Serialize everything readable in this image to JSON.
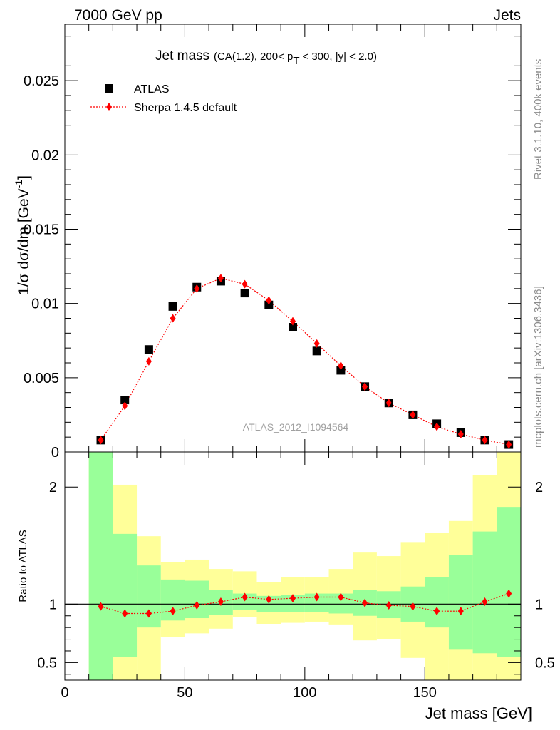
{
  "header": {
    "left": "7000 GeV pp",
    "right": "Jets"
  },
  "side_labels": {
    "rivet": "Rivet 3.1.10,  400k events",
    "mcplots": "mcplots.cern.ch [arXiv:1306.3436]"
  },
  "chart_data": {
    "type": "scatter",
    "title": "Jet mass",
    "subtitle_parts": {
      "pre": "(CA(1.2), 200< p",
      "sub": "T",
      "post": " < 300, |y| < 2.0)"
    },
    "ylabel": "1/σ dσ/dm [GeV",
    "ylabel_sup": "-1",
    "ylabel_tail": "]",
    "xlabel": "Jet mass [GeV]",
    "ratio_ylabel": "Ratio to ATLAS",
    "watermark": "ATLAS_2012_I1094564",
    "xlim": [
      0,
      190
    ],
    "ylim": [
      0,
      0.0288
    ],
    "ratio_ylim": [
      0.35,
      2.3
    ],
    "x_ticks": [
      {
        "value": 0,
        "label": "0"
      },
      {
        "value": 50,
        "label": "50"
      },
      {
        "value": 100,
        "label": "100"
      },
      {
        "value": 150,
        "label": "150"
      }
    ],
    "y_ticks": [
      {
        "value": 0,
        "label": "0"
      },
      {
        "value": 0.005,
        "label": "0.005"
      },
      {
        "value": 0.01,
        "label": "0.01"
      },
      {
        "value": 0.015,
        "label": "0.015"
      },
      {
        "value": 0.02,
        "label": "0.02"
      },
      {
        "value": 0.025,
        "label": "0.025"
      }
    ],
    "ratio_ticks": [
      {
        "value": 0.5,
        "label": "0.5"
      },
      {
        "value": 1,
        "label": "1"
      },
      {
        "value": 2,
        "label": "2"
      }
    ],
    "legend": [
      {
        "name": "ATLAS",
        "marker": "square",
        "color": "#000000"
      },
      {
        "name": "Sherpa 1.4.5 default",
        "marker": "diamond",
        "color": "#ff0000"
      }
    ],
    "bins": [
      {
        "lo": 10,
        "hi": 20
      },
      {
        "lo": 20,
        "hi": 30
      },
      {
        "lo": 30,
        "hi": 40
      },
      {
        "lo": 40,
        "hi": 50
      },
      {
        "lo": 50,
        "hi": 60
      },
      {
        "lo": 60,
        "hi": 70
      },
      {
        "lo": 70,
        "hi": 80
      },
      {
        "lo": 80,
        "hi": 90
      },
      {
        "lo": 90,
        "hi": 100
      },
      {
        "lo": 100,
        "hi": 110
      },
      {
        "lo": 110,
        "hi": 120
      },
      {
        "lo": 120,
        "hi": 130
      },
      {
        "lo": 130,
        "hi": 140
      },
      {
        "lo": 140,
        "hi": 150
      },
      {
        "lo": 150,
        "hi": 160
      },
      {
        "lo": 160,
        "hi": 170
      },
      {
        "lo": 170,
        "hi": 180
      },
      {
        "lo": 180,
        "hi": 190
      }
    ],
    "series": [
      {
        "name": "ATLAS",
        "x": [
          15,
          25,
          35,
          45,
          55,
          65,
          75,
          85,
          95,
          105,
          115,
          125,
          135,
          145,
          155,
          165,
          175,
          185
        ],
        "values": [
          0.0008,
          0.0035,
          0.0069,
          0.0098,
          0.0111,
          0.0115,
          0.0107,
          0.0099,
          0.0084,
          0.0068,
          0.0055,
          0.0044,
          0.0033,
          0.0025,
          0.0019,
          0.0013,
          0.0008,
          0.0005
        ]
      },
      {
        "name": "Sherpa 1.4.5 default",
        "x": [
          15,
          25,
          35,
          45,
          55,
          65,
          75,
          85,
          95,
          105,
          115,
          125,
          135,
          145,
          155,
          165,
          175,
          185
        ],
        "values": [
          0.0008,
          0.0031,
          0.0061,
          0.009,
          0.011,
          0.0117,
          0.0113,
          0.0102,
          0.0088,
          0.0073,
          0.0058,
          0.0044,
          0.0033,
          0.0025,
          0.0017,
          0.0012,
          0.0008,
          0.0005
        ],
        "ratio": [
          0.98,
          0.92,
          0.92,
          0.94,
          0.99,
          1.02,
          1.06,
          1.04,
          1.05,
          1.06,
          1.06,
          1.01,
          0.99,
          0.98,
          0.94,
          0.94,
          1.02,
          1.09
        ]
      }
    ],
    "bands": {
      "green": [
        {
          "lo": 0.3,
          "hi": 2.4
        },
        {
          "lo": 0.55,
          "hi": 1.6
        },
        {
          "lo": 0.8,
          "hi": 1.33
        },
        {
          "lo": 0.86,
          "hi": 1.21
        },
        {
          "lo": 0.88,
          "hi": 1.2
        },
        {
          "lo": 0.91,
          "hi": 1.12
        },
        {
          "lo": 0.95,
          "hi": 1.09
        },
        {
          "lo": 0.93,
          "hi": 1.07
        },
        {
          "lo": 0.93,
          "hi": 1.08
        },
        {
          "lo": 0.93,
          "hi": 1.09
        },
        {
          "lo": 0.92,
          "hi": 1.09
        },
        {
          "lo": 0.9,
          "hi": 1.12
        },
        {
          "lo": 0.88,
          "hi": 1.11
        },
        {
          "lo": 0.85,
          "hi": 1.15
        },
        {
          "lo": 0.8,
          "hi": 1.23
        },
        {
          "lo": 0.61,
          "hi": 1.42
        },
        {
          "lo": 0.58,
          "hi": 1.62
        },
        {
          "lo": 0.55,
          "hi": 1.83
        }
      ],
      "yellow": [
        {
          "lo": 0.3,
          "hi": 2.4
        },
        {
          "lo": 0.3,
          "hi": 2.02
        },
        {
          "lo": 0.3,
          "hi": 1.58
        },
        {
          "lo": 0.72,
          "hi": 1.36
        },
        {
          "lo": 0.75,
          "hi": 1.38
        },
        {
          "lo": 0.79,
          "hi": 1.3
        },
        {
          "lo": 0.89,
          "hi": 1.28
        },
        {
          "lo": 0.83,
          "hi": 1.19
        },
        {
          "lo": 0.84,
          "hi": 1.23
        },
        {
          "lo": 0.85,
          "hi": 1.23
        },
        {
          "lo": 0.82,
          "hi": 1.3
        },
        {
          "lo": 0.69,
          "hi": 1.44
        },
        {
          "lo": 0.7,
          "hi": 1.41
        },
        {
          "lo": 0.54,
          "hi": 1.53
        },
        {
          "lo": 0.3,
          "hi": 1.61
        },
        {
          "lo": 0.3,
          "hi": 1.71
        },
        {
          "lo": 0.3,
          "hi": 2.1
        },
        {
          "lo": 0.3,
          "hi": 2.4
        }
      ]
    },
    "colors": {
      "green_band": "#99ff99",
      "yellow_band": "#ffff99",
      "mc": "#ff0000",
      "data": "#000000"
    }
  }
}
